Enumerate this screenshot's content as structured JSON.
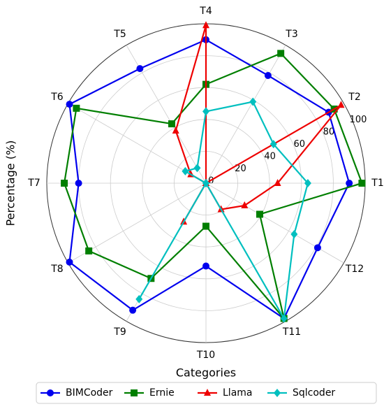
{
  "chart_data": {
    "type": "radar",
    "y_label": "Percentage (%)",
    "x_label": "Categories",
    "categories": [
      "T1",
      "T2",
      "T3",
      "T4",
      "T5",
      "T6",
      "T7",
      "T8",
      "T9",
      "T10",
      "T11",
      "T12"
    ],
    "ylim": [
      0,
      100
    ],
    "yticks": [
      0,
      20,
      40,
      60,
      80,
      100
    ],
    "grid": true,
    "legend": "bottom",
    "series": [
      {
        "name": "BIMCoder",
        "color": "#0000ee",
        "marker": "circle",
        "values": [
          90,
          89,
          78,
          90,
          83,
          99,
          80,
          99,
          92,
          52,
          98,
          81
        ]
      },
      {
        "name": "Ernie",
        "color": "#007f00",
        "marker": "square",
        "values": [
          98,
          93,
          94,
          62,
          43,
          94,
          89,
          85,
          69,
          27,
          98,
          39
        ]
      },
      {
        "name": "Llama",
        "color": "#ee0000",
        "marker": "triangle",
        "values": [
          45,
          98,
          0,
          99,
          38,
          11,
          0,
          0,
          28,
          0,
          19,
          28
        ]
      },
      {
        "name": "Sqlcoder",
        "color": "#00bfbf",
        "marker": "diamond",
        "values": [
          64,
          49,
          59,
          45,
          11,
          15,
          0,
          0,
          84,
          0,
          98,
          64
        ]
      }
    ]
  }
}
